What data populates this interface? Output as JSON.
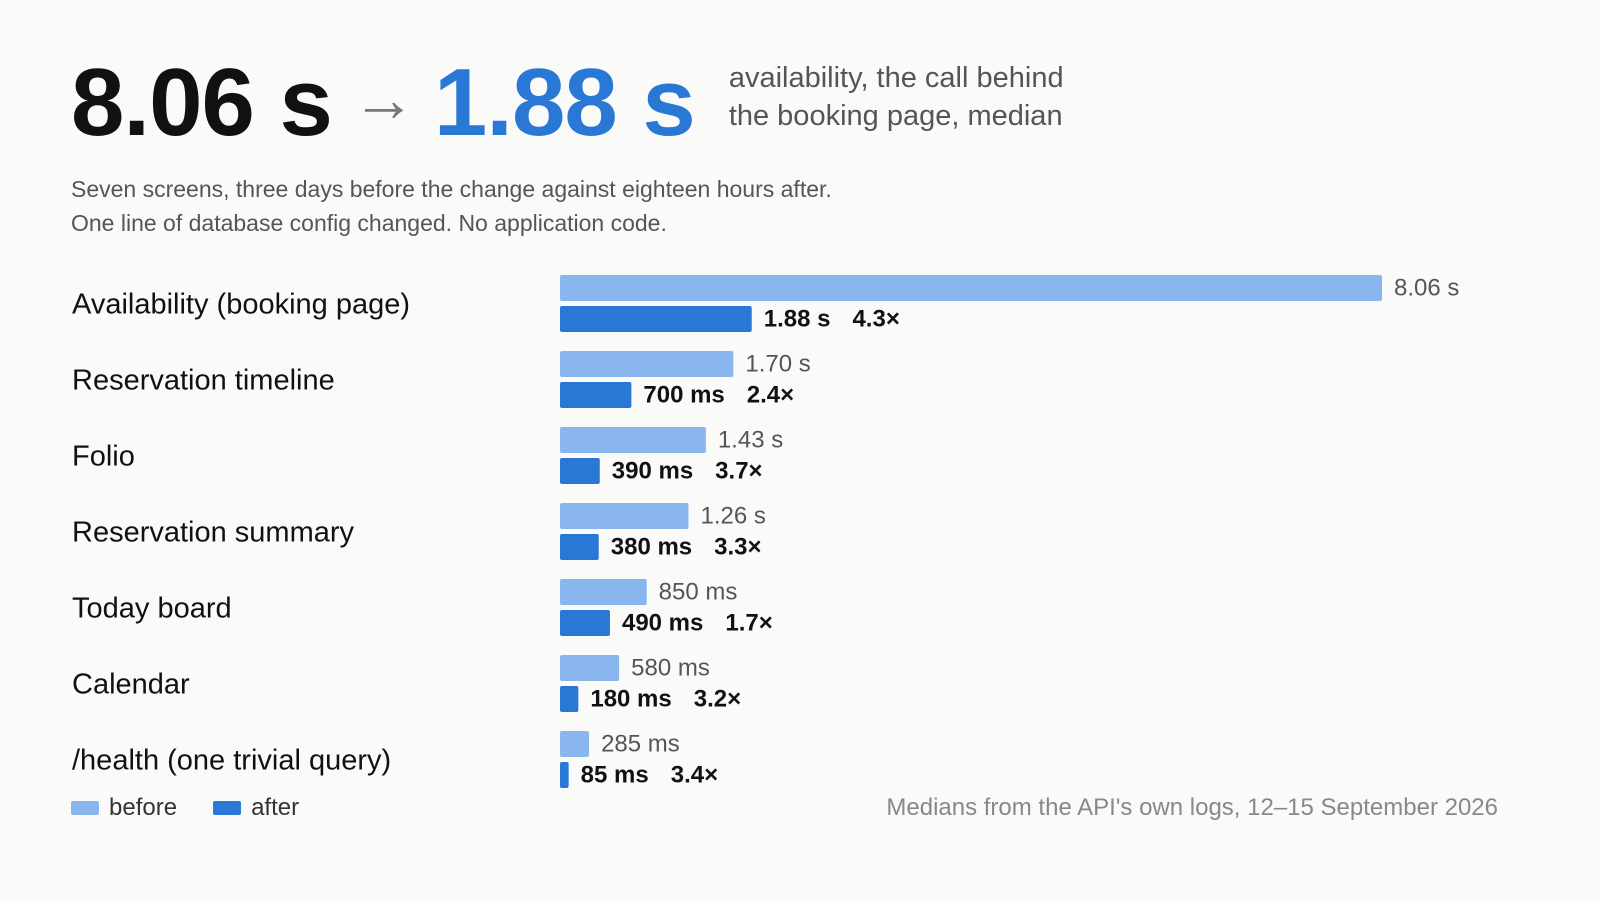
{
  "headline": {
    "before_value": "8.06 s",
    "arrow": "→",
    "after_value": "1.88 s",
    "caption_line1": "availability, the call behind",
    "caption_line2": "the booking page, median"
  },
  "subtitle": {
    "line1": "Seven screens, three days before the change against eighteen hours after.",
    "line2": "One line of database config changed. No application code."
  },
  "legend": {
    "before": "before",
    "after": "after"
  },
  "source": "Medians from the API's own logs, 12–15 September 2026",
  "colors": {
    "before": "#8ab6ee",
    "after": "#2a78d6",
    "headline_after": "#2a78d6"
  },
  "chart_data": {
    "type": "bar",
    "orientation": "horizontal",
    "unit": "ms",
    "categories": [
      "Availability (booking page)",
      "Reservation timeline",
      "Folio",
      "Reservation summary",
      "Today board",
      "Calendar",
      "/health (one trivial query)"
    ],
    "series": [
      {
        "name": "before",
        "values": [
          8060,
          1700,
          1430,
          1260,
          850,
          580,
          285
        ],
        "labels": [
          "8.06 s",
          "1.70 s",
          "1.43 s",
          "1.26 s",
          "850 ms",
          "580 ms",
          "285 ms"
        ]
      },
      {
        "name": "after",
        "values": [
          1880,
          700,
          390,
          380,
          490,
          180,
          85
        ],
        "labels": [
          "1.88 s",
          "700 ms",
          "390 ms",
          "380 ms",
          "490 ms",
          "180 ms",
          "85 ms"
        ]
      }
    ],
    "speedups": [
      "4.3×",
      "2.4×",
      "3.7×",
      "3.3×",
      "1.7×",
      "3.2×",
      "3.4×"
    ],
    "xlim": [
      0,
      8060
    ],
    "grid": false,
    "legend_position": "bottom-left"
  }
}
